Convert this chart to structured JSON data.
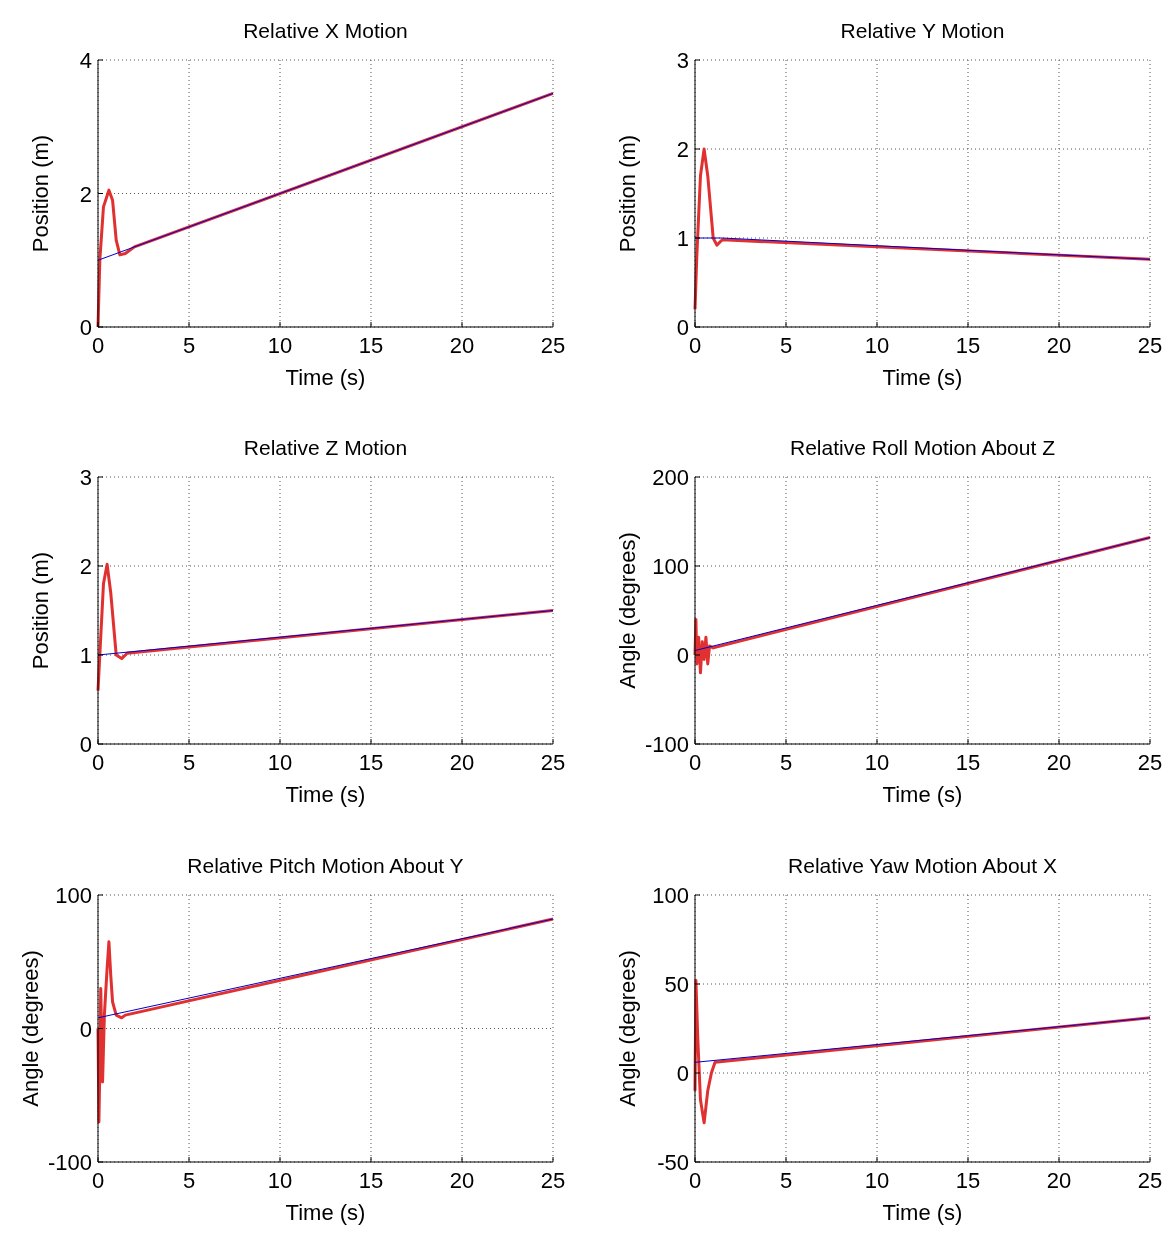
{
  "chart_data": [
    {
      "type": "line",
      "title": "Relative X Motion",
      "xlabel": "Time (s)",
      "ylabel": "Position (m)",
      "xlim": [
        0,
        25
      ],
      "xticks": [
        0,
        5,
        10,
        15,
        20,
        25
      ],
      "ylim": [
        0,
        4
      ],
      "yticks": [
        0,
        2,
        4
      ],
      "grid": true,
      "series": [
        {
          "color": "#0000cc",
          "x": [
            0,
            25
          ],
          "values": [
            1,
            3.5
          ]
        },
        {
          "color": "#e03030",
          "x": [
            0,
            0.1,
            0.3,
            0.6,
            0.8,
            1.0,
            1.2,
            1.5,
            2,
            25
          ],
          "values": [
            0,
            1,
            1.8,
            2.05,
            1.9,
            1.3,
            1.08,
            1.1,
            1.2,
            3.5
          ]
        }
      ]
    },
    {
      "type": "line",
      "title": "Relative Y Motion",
      "xlabel": "Time (s)",
      "ylabel": "Position (m)",
      "xlim": [
        0,
        25
      ],
      "xticks": [
        0,
        5,
        10,
        15,
        20,
        25
      ],
      "ylim": [
        0,
        3
      ],
      "yticks": [
        0,
        1,
        2,
        3
      ],
      "grid": true,
      "series": [
        {
          "color": "#0000cc",
          "x": [
            0,
            1.5,
            25
          ],
          "values": [
            1,
            1,
            0.76
          ]
        },
        {
          "color": "#e03030",
          "x": [
            0,
            0.1,
            0.3,
            0.5,
            0.7,
            1.0,
            1.2,
            1.5,
            25
          ],
          "values": [
            0.2,
            0.8,
            1.7,
            2.0,
            1.7,
            1.0,
            0.92,
            0.98,
            0.76
          ]
        }
      ]
    },
    {
      "type": "line",
      "title": "Relative Z Motion",
      "xlabel": "Time (s)",
      "ylabel": "Position (m)",
      "xlim": [
        0,
        25
      ],
      "xticks": [
        0,
        5,
        10,
        15,
        20,
        25
      ],
      "ylim": [
        0,
        3
      ],
      "yticks": [
        0,
        1,
        2,
        3
      ],
      "grid": true,
      "series": [
        {
          "color": "#0000cc",
          "x": [
            0,
            25
          ],
          "values": [
            1,
            1.5
          ]
        },
        {
          "color": "#e03030",
          "x": [
            0,
            0.1,
            0.3,
            0.5,
            0.7,
            1.0,
            1.3,
            1.6,
            25
          ],
          "values": [
            0.6,
            1.0,
            1.8,
            2.02,
            1.7,
            1.0,
            0.96,
            1.02,
            1.5
          ]
        }
      ]
    },
    {
      "type": "line",
      "title": "Relative Roll Motion About Z",
      "xlabel": "Time (s)",
      "ylabel": "Angle (degrees)",
      "xlim": [
        0,
        25
      ],
      "xticks": [
        0,
        5,
        10,
        15,
        20,
        25
      ],
      "ylim": [
        -100,
        200
      ],
      "yticks": [
        -100,
        0,
        100,
        200
      ],
      "grid": true,
      "series": [
        {
          "color": "#0000cc",
          "x": [
            0,
            25
          ],
          "values": [
            5,
            132
          ]
        },
        {
          "color": "#e03030",
          "x": [
            0,
            0.05,
            0.1,
            0.2,
            0.3,
            0.4,
            0.5,
            0.6,
            0.7,
            0.8,
            1.0,
            25
          ],
          "values": [
            0,
            40,
            -10,
            20,
            -20,
            15,
            -5,
            20,
            -10,
            10,
            8,
            132
          ]
        }
      ]
    },
    {
      "type": "line",
      "title": "Relative Pitch Motion About Y",
      "xlabel": "Time (s)",
      "ylabel": "Angle (degrees)",
      "xlim": [
        0,
        25
      ],
      "xticks": [
        0,
        5,
        10,
        15,
        20,
        25
      ],
      "ylim": [
        -100,
        100
      ],
      "yticks": [
        -100,
        0,
        100
      ],
      "grid": true,
      "series": [
        {
          "color": "#0000cc",
          "x": [
            0,
            25
          ],
          "values": [
            8,
            82
          ]
        },
        {
          "color": "#e03030",
          "x": [
            0,
            0.05,
            0.1,
            0.15,
            0.25,
            0.35,
            0.5,
            0.6,
            0.7,
            0.8,
            1.0,
            1.3,
            1.5,
            25
          ],
          "values": [
            0,
            -70,
            -30,
            30,
            -40,
            10,
            45,
            65,
            40,
            20,
            10,
            8,
            10,
            82
          ]
        }
      ]
    },
    {
      "type": "line",
      "title": "Relative Yaw Motion About X",
      "xlabel": "Time (s)",
      "ylabel": "Angle (degrees)",
      "xlim": [
        0,
        25
      ],
      "xticks": [
        0,
        5,
        10,
        15,
        20,
        25
      ],
      "ylim": [
        -50,
        100
      ],
      "yticks": [
        -50,
        0,
        50,
        100
      ],
      "grid": true,
      "series": [
        {
          "color": "#0000cc",
          "x": [
            0,
            25
          ],
          "values": [
            6,
            31
          ]
        },
        {
          "color": "#e03030",
          "x": [
            0,
            0.05,
            0.15,
            0.3,
            0.5,
            0.7,
            0.9,
            1.1,
            25
          ],
          "values": [
            -10,
            52,
            20,
            -15,
            -28,
            -10,
            0,
            6,
            31
          ]
        }
      ]
    }
  ]
}
